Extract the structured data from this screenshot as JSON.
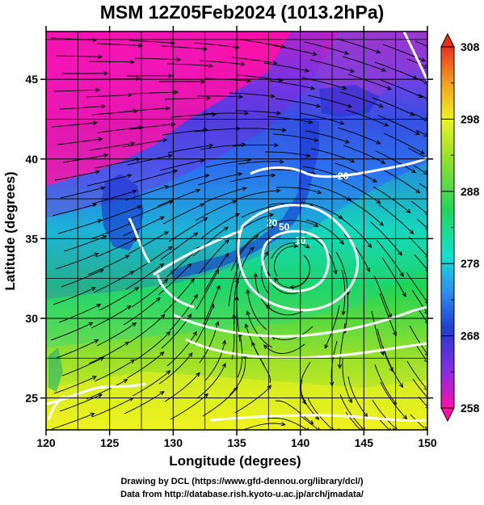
{
  "title": "MSM 12Z05Feb2024 (1013.2hPa)",
  "axes": {
    "xlabel": "Longitude (degrees)",
    "ylabel": "Latitude (degrees)",
    "xlim": [
      120,
      150
    ],
    "ylim": [
      23,
      48
    ],
    "xticks": [
      "120",
      "125",
      "130",
      "135",
      "140",
      "145",
      "150"
    ],
    "yticks": [
      "25",
      "30",
      "35",
      "40",
      "45"
    ]
  },
  "colorbar": {
    "min": 258,
    "max": 308,
    "tick_labels": [
      "308",
      "298",
      "288",
      "278",
      "268",
      "258"
    ],
    "colors": [
      "#ff0099",
      "#8a2be2",
      "#1f3fcf",
      "#2f8cf0",
      "#14e0d0",
      "#22d65a",
      "#9be12a",
      "#ecf224",
      "#f0a020",
      "#e83020"
    ]
  },
  "contour_labels": [
    "20",
    "10",
    "50",
    "20"
  ],
  "credits": {
    "line1": "Drawing by DCL (https://www.gfd-dennou.org/library/dcl/)",
    "line2": "Data from http://database.rish.kyoto-u.ac.jp/arch/jmadata/"
  }
}
